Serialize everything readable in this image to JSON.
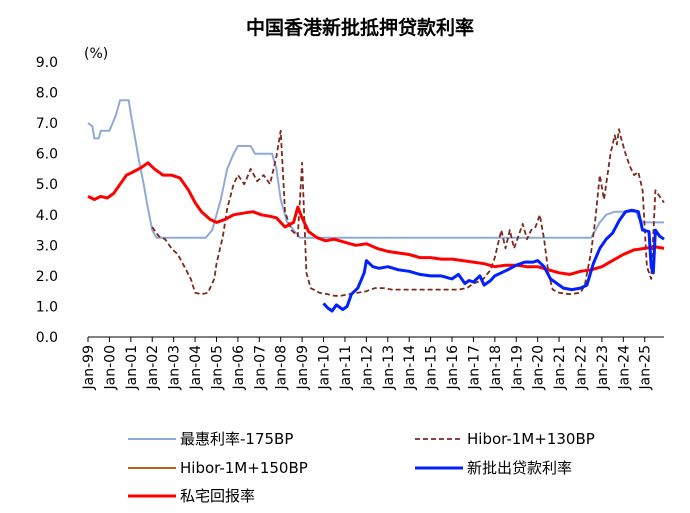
{
  "chart_data": {
    "type": "line",
    "title": "中国香港新批抵押贷款利率",
    "unit_label": "(%)",
    "ylim": [
      0.0,
      9.0
    ],
    "yticks": [
      "0.0",
      "1.0",
      "2.0",
      "3.0",
      "4.0",
      "5.0",
      "6.0",
      "7.0",
      "8.0",
      "9.0"
    ],
    "xlim": [
      1999.0,
      2025.9
    ],
    "xticks": [
      "Jan-99",
      "Jan-00",
      "Jan-01",
      "Jan-02",
      "Jan-03",
      "Jan-04",
      "Jan-05",
      "Jan-06",
      "Jan-07",
      "Jan-08",
      "Jan-09",
      "Jan-10",
      "Jan-11",
      "Jan-12",
      "Jan-13",
      "Jan-14",
      "Jan-15",
      "Jan-16",
      "Jan-17",
      "Jan-18",
      "Jan-19",
      "Jan-20",
      "Jan-21",
      "Jan-22",
      "Jan-23",
      "Jan-24",
      "Jan-25"
    ],
    "legend": [
      "最惠利率-175BP",
      "Hibor-1M+130BP",
      "Hibor-1M+150BP",
      "新批出贷款利率",
      "私宅回报率"
    ],
    "series": [
      {
        "name": "最惠利率-175BP",
        "color": "#8eaadb",
        "style": "solid",
        "points": [
          [
            1999.0,
            7.0
          ],
          [
            1999.2,
            6.9
          ],
          [
            1999.3,
            6.5
          ],
          [
            1999.5,
            6.5
          ],
          [
            1999.6,
            6.75
          ],
          [
            2000.0,
            6.75
          ],
          [
            2000.3,
            7.25
          ],
          [
            2000.5,
            7.75
          ],
          [
            2000.9,
            7.75
          ],
          [
            2001.0,
            7.3
          ],
          [
            2001.2,
            6.5
          ],
          [
            2001.4,
            5.7
          ],
          [
            2001.6,
            5.0
          ],
          [
            2001.8,
            4.2
          ],
          [
            2002.0,
            3.5
          ],
          [
            2002.2,
            3.25
          ],
          [
            2004.5,
            3.25
          ],
          [
            2004.8,
            3.5
          ],
          [
            2005.2,
            4.5
          ],
          [
            2005.5,
            5.5
          ],
          [
            2005.8,
            6.0
          ],
          [
            2006.0,
            6.25
          ],
          [
            2006.6,
            6.25
          ],
          [
            2006.8,
            6.0
          ],
          [
            2007.6,
            6.0
          ],
          [
            2007.8,
            5.5
          ],
          [
            2008.0,
            4.5
          ],
          [
            2008.3,
            3.75
          ],
          [
            2008.9,
            3.25
          ],
          [
            2022.5,
            3.25
          ],
          [
            2022.7,
            3.5
          ],
          [
            2022.9,
            3.75
          ],
          [
            2023.2,
            4.0
          ],
          [
            2023.6,
            4.1
          ],
          [
            2024.6,
            4.1
          ],
          [
            2024.7,
            3.9
          ],
          [
            2024.9,
            3.75
          ],
          [
            2025.9,
            3.75
          ]
        ]
      },
      {
        "name": "Hibor-1M+130BP",
        "color": "#7b2a1c",
        "style": "dashed",
        "points": [
          [
            2002.0,
            3.6
          ],
          [
            2002.3,
            3.3
          ],
          [
            2002.6,
            3.2
          ],
          [
            2002.9,
            2.9
          ],
          [
            2003.2,
            2.7
          ],
          [
            2003.5,
            2.3
          ],
          [
            2003.8,
            1.9
          ],
          [
            2004.0,
            1.45
          ],
          [
            2004.3,
            1.4
          ],
          [
            2004.6,
            1.45
          ],
          [
            2004.9,
            1.9
          ],
          [
            2005.0,
            2.4
          ],
          [
            2005.3,
            3.3
          ],
          [
            2005.5,
            4.2
          ],
          [
            2005.8,
            5.0
          ],
          [
            2006.0,
            5.3
          ],
          [
            2006.3,
            5.0
          ],
          [
            2006.6,
            5.5
          ],
          [
            2006.9,
            5.1
          ],
          [
            2007.2,
            5.3
          ],
          [
            2007.5,
            5.0
          ],
          [
            2007.8,
            5.9
          ],
          [
            2008.0,
            6.75
          ],
          [
            2008.2,
            4.1
          ],
          [
            2008.5,
            3.5
          ],
          [
            2008.8,
            3.3
          ],
          [
            2009.0,
            5.7
          ],
          [
            2009.2,
            2.1
          ],
          [
            2009.4,
            1.6
          ],
          [
            2009.8,
            1.45
          ],
          [
            2010.2,
            1.4
          ],
          [
            2010.5,
            1.35
          ],
          [
            2010.8,
            1.35
          ],
          [
            2011.2,
            1.4
          ],
          [
            2011.6,
            1.45
          ],
          [
            2012.0,
            1.5
          ],
          [
            2012.4,
            1.6
          ],
          [
            2012.8,
            1.6
          ],
          [
            2013.2,
            1.55
          ],
          [
            2014.0,
            1.55
          ],
          [
            2015.0,
            1.55
          ],
          [
            2016.0,
            1.55
          ],
          [
            2016.3,
            1.55
          ],
          [
            2016.7,
            1.6
          ],
          [
            2017.0,
            1.75
          ],
          [
            2017.4,
            1.85
          ],
          [
            2017.8,
            2.2
          ],
          [
            2018.0,
            2.6
          ],
          [
            2018.3,
            3.5
          ],
          [
            2018.5,
            2.9
          ],
          [
            2018.7,
            3.5
          ],
          [
            2018.9,
            2.9
          ],
          [
            2019.1,
            3.3
          ],
          [
            2019.3,
            3.7
          ],
          [
            2019.5,
            3.2
          ],
          [
            2019.7,
            3.5
          ],
          [
            2019.9,
            3.6
          ],
          [
            2020.1,
            4.0
          ],
          [
            2020.3,
            3.2
          ],
          [
            2020.5,
            2.1
          ],
          [
            2020.7,
            1.55
          ],
          [
            2021.0,
            1.45
          ],
          [
            2021.5,
            1.4
          ],
          [
            2022.0,
            1.45
          ],
          [
            2022.2,
            1.7
          ],
          [
            2022.5,
            2.8
          ],
          [
            2022.7,
            3.9
          ],
          [
            2022.9,
            5.3
          ],
          [
            2023.1,
            4.5
          ],
          [
            2023.4,
            6.0
          ],
          [
            2023.6,
            6.6
          ],
          [
            2023.7,
            6.3
          ],
          [
            2023.8,
            6.8
          ],
          [
            2023.9,
            6.5
          ],
          [
            2024.1,
            6.0
          ],
          [
            2024.3,
            5.6
          ],
          [
            2024.5,
            5.3
          ],
          [
            2024.7,
            5.4
          ],
          [
            2024.9,
            4.8
          ],
          [
            2025.1,
            2.3
          ],
          [
            2025.3,
            1.9
          ],
          [
            2025.5,
            4.8
          ],
          [
            2025.7,
            4.6
          ],
          [
            2025.9,
            4.4
          ]
        ]
      },
      {
        "name": "Hibor-1M+150BP",
        "color": "#c55a11",
        "style": "solid",
        "points": []
      },
      {
        "name": "新批出贷款利率",
        "color": "#0020ff",
        "style": "solid",
        "points": [
          [
            2010.0,
            1.1
          ],
          [
            2010.2,
            0.95
          ],
          [
            2010.4,
            0.85
          ],
          [
            2010.6,
            1.05
          ],
          [
            2010.9,
            0.9
          ],
          [
            2011.1,
            1.0
          ],
          [
            2011.3,
            1.4
          ],
          [
            2011.6,
            1.6
          ],
          [
            2011.9,
            2.1
          ],
          [
            2012.0,
            2.5
          ],
          [
            2012.3,
            2.3
          ],
          [
            2012.6,
            2.25
          ],
          [
            2013.0,
            2.3
          ],
          [
            2013.5,
            2.2
          ],
          [
            2014.0,
            2.15
          ],
          [
            2014.5,
            2.05
          ],
          [
            2015.0,
            2.0
          ],
          [
            2015.5,
            2.0
          ],
          [
            2016.0,
            1.9
          ],
          [
            2016.3,
            2.05
          ],
          [
            2016.6,
            1.75
          ],
          [
            2016.8,
            1.85
          ],
          [
            2017.0,
            1.8
          ],
          [
            2017.3,
            2.0
          ],
          [
            2017.5,
            1.7
          ],
          [
            2017.8,
            1.85
          ],
          [
            2018.0,
            2.0
          ],
          [
            2018.3,
            2.1
          ],
          [
            2018.6,
            2.2
          ],
          [
            2019.0,
            2.35
          ],
          [
            2019.4,
            2.45
          ],
          [
            2019.8,
            2.45
          ],
          [
            2020.0,
            2.5
          ],
          [
            2020.3,
            2.3
          ],
          [
            2020.6,
            1.9
          ],
          [
            2020.9,
            1.75
          ],
          [
            2021.2,
            1.6
          ],
          [
            2021.6,
            1.55
          ],
          [
            2022.0,
            1.6
          ],
          [
            2022.3,
            1.7
          ],
          [
            2022.6,
            2.4
          ],
          [
            2022.9,
            2.9
          ],
          [
            2023.2,
            3.2
          ],
          [
            2023.5,
            3.4
          ],
          [
            2023.8,
            3.8
          ],
          [
            2024.1,
            4.1
          ],
          [
            2024.4,
            4.15
          ],
          [
            2024.7,
            4.1
          ],
          [
            2024.9,
            3.5
          ],
          [
            2025.2,
            3.45
          ],
          [
            2025.3,
            2.3
          ],
          [
            2025.4,
            2.1
          ],
          [
            2025.5,
            3.5
          ],
          [
            2025.7,
            3.3
          ],
          [
            2025.9,
            3.2
          ]
        ]
      },
      {
        "name": "私宅回报率",
        "color": "#ff0000",
        "style": "solid",
        "points": [
          [
            1999.0,
            4.6
          ],
          [
            1999.3,
            4.5
          ],
          [
            1999.6,
            4.6
          ],
          [
            1999.9,
            4.55
          ],
          [
            2000.2,
            4.7
          ],
          [
            2000.5,
            5.0
          ],
          [
            2000.8,
            5.3
          ],
          [
            2001.1,
            5.4
          ],
          [
            2001.5,
            5.55
          ],
          [
            2001.8,
            5.7
          ],
          [
            2002.1,
            5.5
          ],
          [
            2002.5,
            5.3
          ],
          [
            2002.9,
            5.3
          ],
          [
            2003.3,
            5.2
          ],
          [
            2003.7,
            4.8
          ],
          [
            2004.0,
            4.4
          ],
          [
            2004.3,
            4.1
          ],
          [
            2004.7,
            3.85
          ],
          [
            2005.0,
            3.75
          ],
          [
            2005.4,
            3.85
          ],
          [
            2005.8,
            4.0
          ],
          [
            2006.2,
            4.05
          ],
          [
            2006.7,
            4.1
          ],
          [
            2007.1,
            4.0
          ],
          [
            2007.5,
            3.95
          ],
          [
            2007.8,
            3.9
          ],
          [
            2008.2,
            3.6
          ],
          [
            2008.6,
            3.75
          ],
          [
            2008.8,
            4.25
          ],
          [
            2009.0,
            3.9
          ],
          [
            2009.3,
            3.45
          ],
          [
            2009.7,
            3.25
          ],
          [
            2010.1,
            3.15
          ],
          [
            2010.5,
            3.2
          ],
          [
            2011.0,
            3.1
          ],
          [
            2011.5,
            3.0
          ],
          [
            2012.0,
            3.05
          ],
          [
            2012.5,
            2.9
          ],
          [
            2013.0,
            2.8
          ],
          [
            2013.5,
            2.75
          ],
          [
            2014.0,
            2.7
          ],
          [
            2014.5,
            2.6
          ],
          [
            2015.0,
            2.6
          ],
          [
            2015.5,
            2.55
          ],
          [
            2016.0,
            2.55
          ],
          [
            2016.5,
            2.5
          ],
          [
            2017.0,
            2.45
          ],
          [
            2017.5,
            2.4
          ],
          [
            2018.0,
            2.3
          ],
          [
            2018.5,
            2.35
          ],
          [
            2019.0,
            2.35
          ],
          [
            2019.5,
            2.3
          ],
          [
            2020.0,
            2.3
          ],
          [
            2020.5,
            2.2
          ],
          [
            2021.0,
            2.1
          ],
          [
            2021.5,
            2.05
          ],
          [
            2022.0,
            2.15
          ],
          [
            2022.5,
            2.2
          ],
          [
            2023.0,
            2.3
          ],
          [
            2023.5,
            2.5
          ],
          [
            2024.0,
            2.7
          ],
          [
            2024.5,
            2.85
          ],
          [
            2025.0,
            2.9
          ],
          [
            2025.5,
            2.95
          ],
          [
            2025.9,
            2.9
          ]
        ]
      }
    ]
  }
}
